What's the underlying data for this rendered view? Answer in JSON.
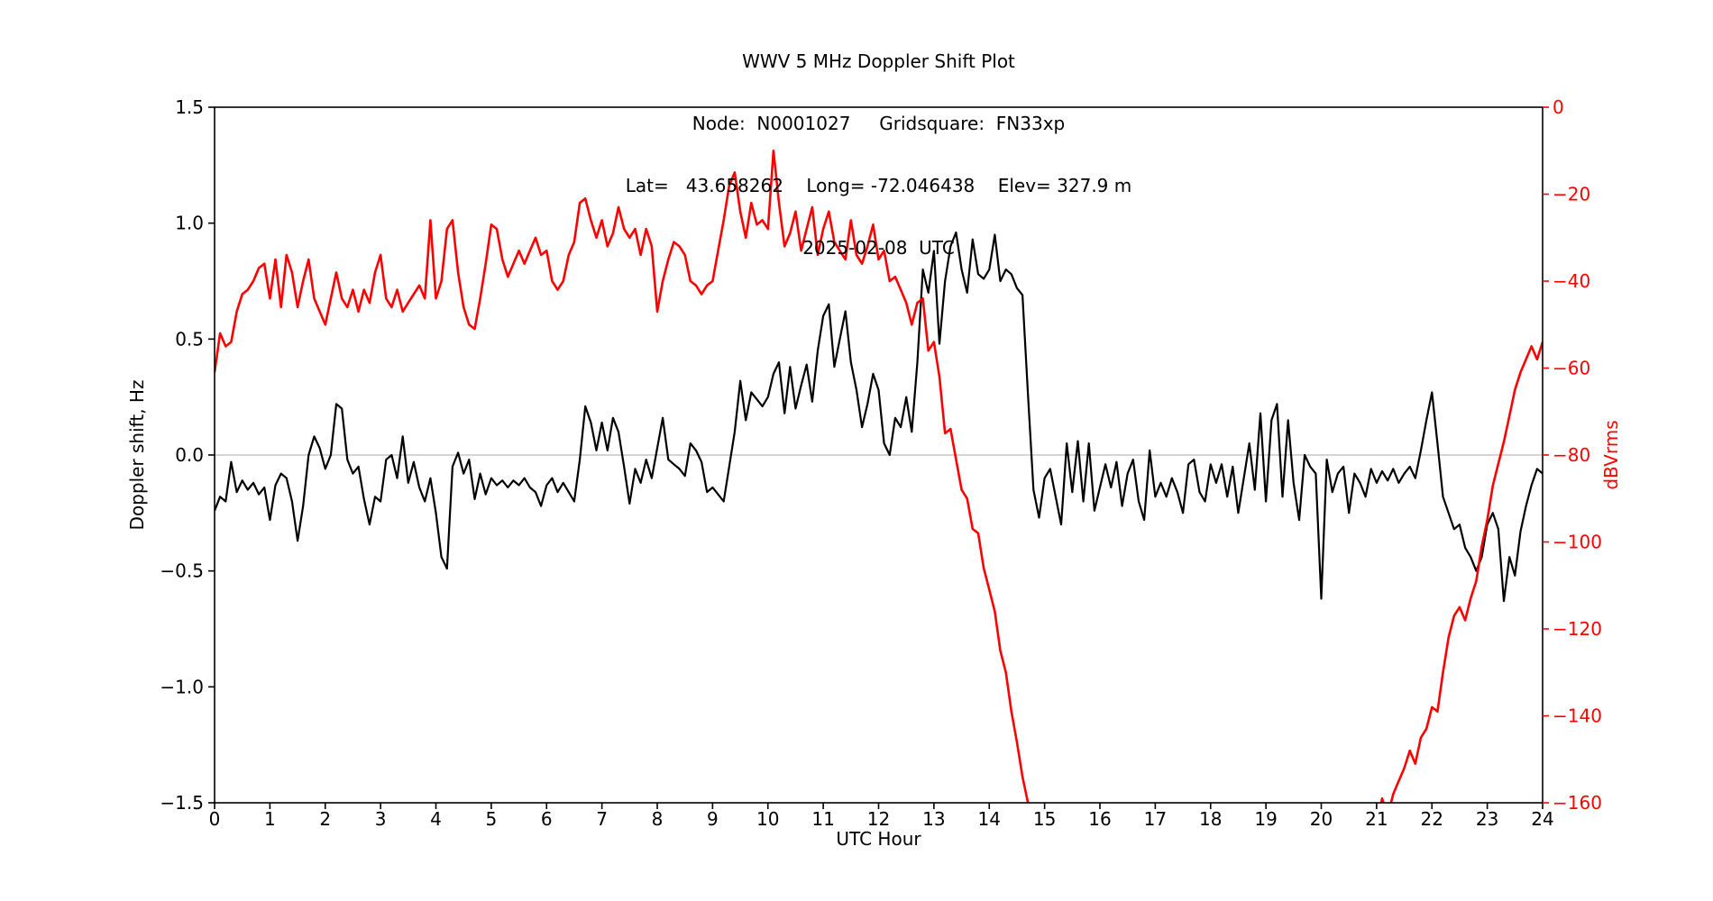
{
  "chart_data": {
    "type": "line",
    "title_lines": [
      "WWV 5 MHz Doppler Shift Plot",
      "Node:  N0001027     Gridsquare:  FN33xp",
      "Lat=   43.658262    Long= -72.046438    Elev= 327.9 m",
      "2025-02-08  UTC"
    ],
    "xlabel": "UTC Hour",
    "ylabel_left": "Doppler shift, Hz",
    "ylabel_right": "dBVrms",
    "x_range": [
      0,
      24
    ],
    "y_left_range": [
      -1.5,
      1.5
    ],
    "y_right_range": [
      -160,
      0
    ],
    "grid": false,
    "legend": null,
    "zero_reference_line": 0.0,
    "x_ticks": {
      "values": [
        0,
        1,
        2,
        3,
        4,
        5,
        6,
        7,
        8,
        9,
        10,
        11,
        12,
        13,
        14,
        15,
        16,
        17,
        18,
        19,
        20,
        21,
        22,
        23,
        24
      ],
      "labels": [
        "0",
        "1",
        "2",
        "3",
        "4",
        "5",
        "6",
        "7",
        "8",
        "9",
        "10",
        "11",
        "12",
        "13",
        "14",
        "15",
        "16",
        "17",
        "18",
        "19",
        "20",
        "21",
        "22",
        "23",
        "24"
      ]
    },
    "y_left_ticks": {
      "values": [
        1.5,
        1.0,
        0.5,
        0.0,
        -0.5,
        -1.0,
        -1.5
      ],
      "labels": [
        "1.5",
        "1.0",
        "0.5",
        "0.0",
        "−0.5",
        "−1.0",
        "−1.5"
      ]
    },
    "y_right_ticks": {
      "values": [
        0,
        -20,
        -40,
        -60,
        -80,
        -100,
        -120,
        -140,
        -160
      ],
      "labels": [
        "0",
        "−20",
        "−40",
        "−60",
        "−80",
        "−100",
        "−120",
        "−140",
        "−160"
      ]
    },
    "colors": {
      "doppler": "#000000",
      "dbvrms": "#ff0000",
      "zero_line": "#ababab",
      "axis": "#000000",
      "background": "#ffffff"
    },
    "series": [
      {
        "name": "Doppler shift",
        "axis": "left",
        "color": "#000000",
        "line_width": 2.2,
        "x_start": 0,
        "x_step": 0.1,
        "values": [
          -0.24,
          -0.18,
          -0.2,
          -0.03,
          -0.16,
          -0.11,
          -0.15,
          -0.12,
          -0.17,
          -0.14,
          -0.28,
          -0.13,
          -0.08,
          -0.1,
          -0.2,
          -0.37,
          -0.22,
          0.0,
          0.08,
          0.03,
          -0.06,
          0.0,
          0.22,
          0.2,
          -0.02,
          -0.08,
          -0.05,
          -0.19,
          -0.3,
          -0.18,
          -0.2,
          -0.02,
          0.0,
          -0.1,
          0.08,
          -0.12,
          -0.03,
          -0.14,
          -0.2,
          -0.1,
          -0.25,
          -0.44,
          -0.49,
          -0.05,
          0.01,
          -0.08,
          -0.02,
          -0.19,
          -0.08,
          -0.17,
          -0.1,
          -0.13,
          -0.11,
          -0.14,
          -0.11,
          -0.13,
          -0.1,
          -0.14,
          -0.16,
          -0.22,
          -0.13,
          -0.1,
          -0.16,
          -0.12,
          -0.16,
          -0.2,
          -0.02,
          0.21,
          0.14,
          0.02,
          0.14,
          0.02,
          0.16,
          0.1,
          -0.05,
          -0.21,
          -0.06,
          -0.12,
          -0.02,
          -0.1,
          0.03,
          0.16,
          -0.02,
          -0.04,
          -0.06,
          -0.09,
          0.05,
          0.02,
          -0.03,
          -0.16,
          -0.14,
          -0.17,
          -0.2,
          -0.05,
          0.1,
          0.32,
          0.15,
          0.27,
          0.24,
          0.21,
          0.25,
          0.35,
          0.4,
          0.18,
          0.38,
          0.2,
          0.3,
          0.39,
          0.23,
          0.45,
          0.6,
          0.65,
          0.38,
          0.5,
          0.62,
          0.4,
          0.28,
          0.12,
          0.22,
          0.35,
          0.28,
          0.05,
          0.0,
          0.16,
          0.12,
          0.25,
          0.1,
          0.4,
          0.8,
          0.7,
          0.88,
          0.48,
          0.75,
          0.9,
          0.96,
          0.8,
          0.7,
          0.93,
          0.78,
          0.76,
          0.8,
          0.95,
          0.75,
          0.8,
          0.78,
          0.72,
          0.69,
          0.26,
          -0.15,
          -0.27,
          -0.1,
          -0.06,
          -0.18,
          -0.3,
          0.05,
          -0.16,
          0.06,
          -0.2,
          0.05,
          -0.24,
          -0.14,
          -0.04,
          -0.14,
          -0.03,
          -0.22,
          -0.08,
          -0.02,
          -0.2,
          -0.28,
          0.02,
          -0.18,
          -0.12,
          -0.18,
          -0.1,
          -0.16,
          -0.25,
          -0.04,
          -0.02,
          -0.16,
          -0.2,
          -0.04,
          -0.12,
          -0.04,
          -0.18,
          -0.05,
          -0.25,
          -0.1,
          0.05,
          -0.15,
          0.18,
          -0.2,
          0.15,
          0.22,
          -0.18,
          0.15,
          -0.12,
          -0.28,
          0.0,
          -0.05,
          -0.08,
          -0.62,
          -0.02,
          -0.16,
          -0.08,
          -0.05,
          -0.25,
          -0.08,
          -0.12,
          -0.18,
          -0.06,
          -0.12,
          -0.07,
          -0.11,
          -0.06,
          -0.12,
          -0.08,
          -0.05,
          -0.1,
          0.02,
          0.15,
          0.27,
          0.05,
          -0.18,
          -0.25,
          -0.32,
          -0.3,
          -0.4,
          -0.44,
          -0.5,
          -0.44,
          -0.3,
          -0.25,
          -0.32,
          -0.63,
          -0.44,
          -0.52,
          -0.33,
          -0.22,
          -0.13,
          -0.06,
          -0.08
        ]
      },
      {
        "name": "dBVrms",
        "axis": "right",
        "color": "#ff0000",
        "line_width": 2.6,
        "x_start": 0,
        "x_step": 0.1,
        "values": [
          -61,
          -52,
          -55,
          -54,
          -47,
          -43,
          -42,
          -40,
          -37,
          -36,
          -44,
          -35,
          -46,
          -34,
          -38,
          -46,
          -40,
          -35,
          -44,
          -47,
          -50,
          -44,
          -38,
          -44,
          -46,
          -42,
          -47,
          -42,
          -45,
          -38,
          -34,
          -44,
          -46,
          -42,
          -47,
          -45,
          -43,
          -41,
          -44,
          -26,
          -44,
          -40,
          -28,
          -26,
          -38,
          -46,
          -50,
          -51,
          -44,
          -36,
          -27,
          -28,
          -35,
          -39,
          -36,
          -33,
          -36,
          -33,
          -30,
          -34,
          -33,
          -40,
          -42,
          -40,
          -34,
          -31,
          -22,
          -21,
          -26,
          -30,
          -26,
          -32,
          -29,
          -23,
          -28,
          -30,
          -28,
          -34,
          -28,
          -32,
          -47,
          -40,
          -35,
          -31,
          -32,
          -34,
          -40,
          -41,
          -43,
          -41,
          -40,
          -33,
          -26,
          -18,
          -15,
          -24,
          -30,
          -22,
          -27,
          -26,
          -28,
          -10,
          -22,
          -32,
          -29,
          -24,
          -33,
          -28,
          -23,
          -34,
          -28,
          -24,
          -31,
          -33,
          -35,
          -26,
          -34,
          -36,
          -32,
          -27,
          -35,
          -33,
          -40,
          -39,
          -42,
          -45,
          -50,
          -45,
          -44,
          -56,
          -54,
          -62,
          -75,
          -74,
          -81,
          -88,
          -90,
          -97,
          -98,
          -106,
          -111,
          -116,
          -125,
          -130,
          -139,
          -146,
          -154,
          -160,
          -166,
          -168,
          -168,
          -168,
          -168,
          -168,
          -168,
          -168,
          -168,
          -168,
          -168,
          -168,
          -168,
          -168,
          -168,
          -168,
          -168,
          -168,
          -168,
          -168,
          -168,
          -168,
          -168,
          -168,
          -168,
          -168,
          -168,
          -168,
          -168,
          -168,
          -168,
          -168,
          -168,
          -168,
          -168,
          -168,
          -168,
          -168,
          -168,
          -168,
          -168,
          -168,
          -168,
          -168,
          -168,
          -168,
          -168,
          -168,
          -168,
          -168,
          -168,
          -168,
          -168,
          -168,
          -168,
          -168,
          -168,
          -168,
          -168,
          -168,
          -167,
          -166,
          -166,
          -159,
          -163,
          -158,
          -155,
          -152,
          -148,
          -151,
          -145,
          -143,
          -138,
          -139,
          -130,
          -122,
          -117,
          -115,
          -118,
          -113,
          -109,
          -101,
          -95,
          -87,
          -82,
          -77,
          -71,
          -65,
          -61,
          -58,
          -55,
          -58,
          -54
        ]
      }
    ]
  }
}
